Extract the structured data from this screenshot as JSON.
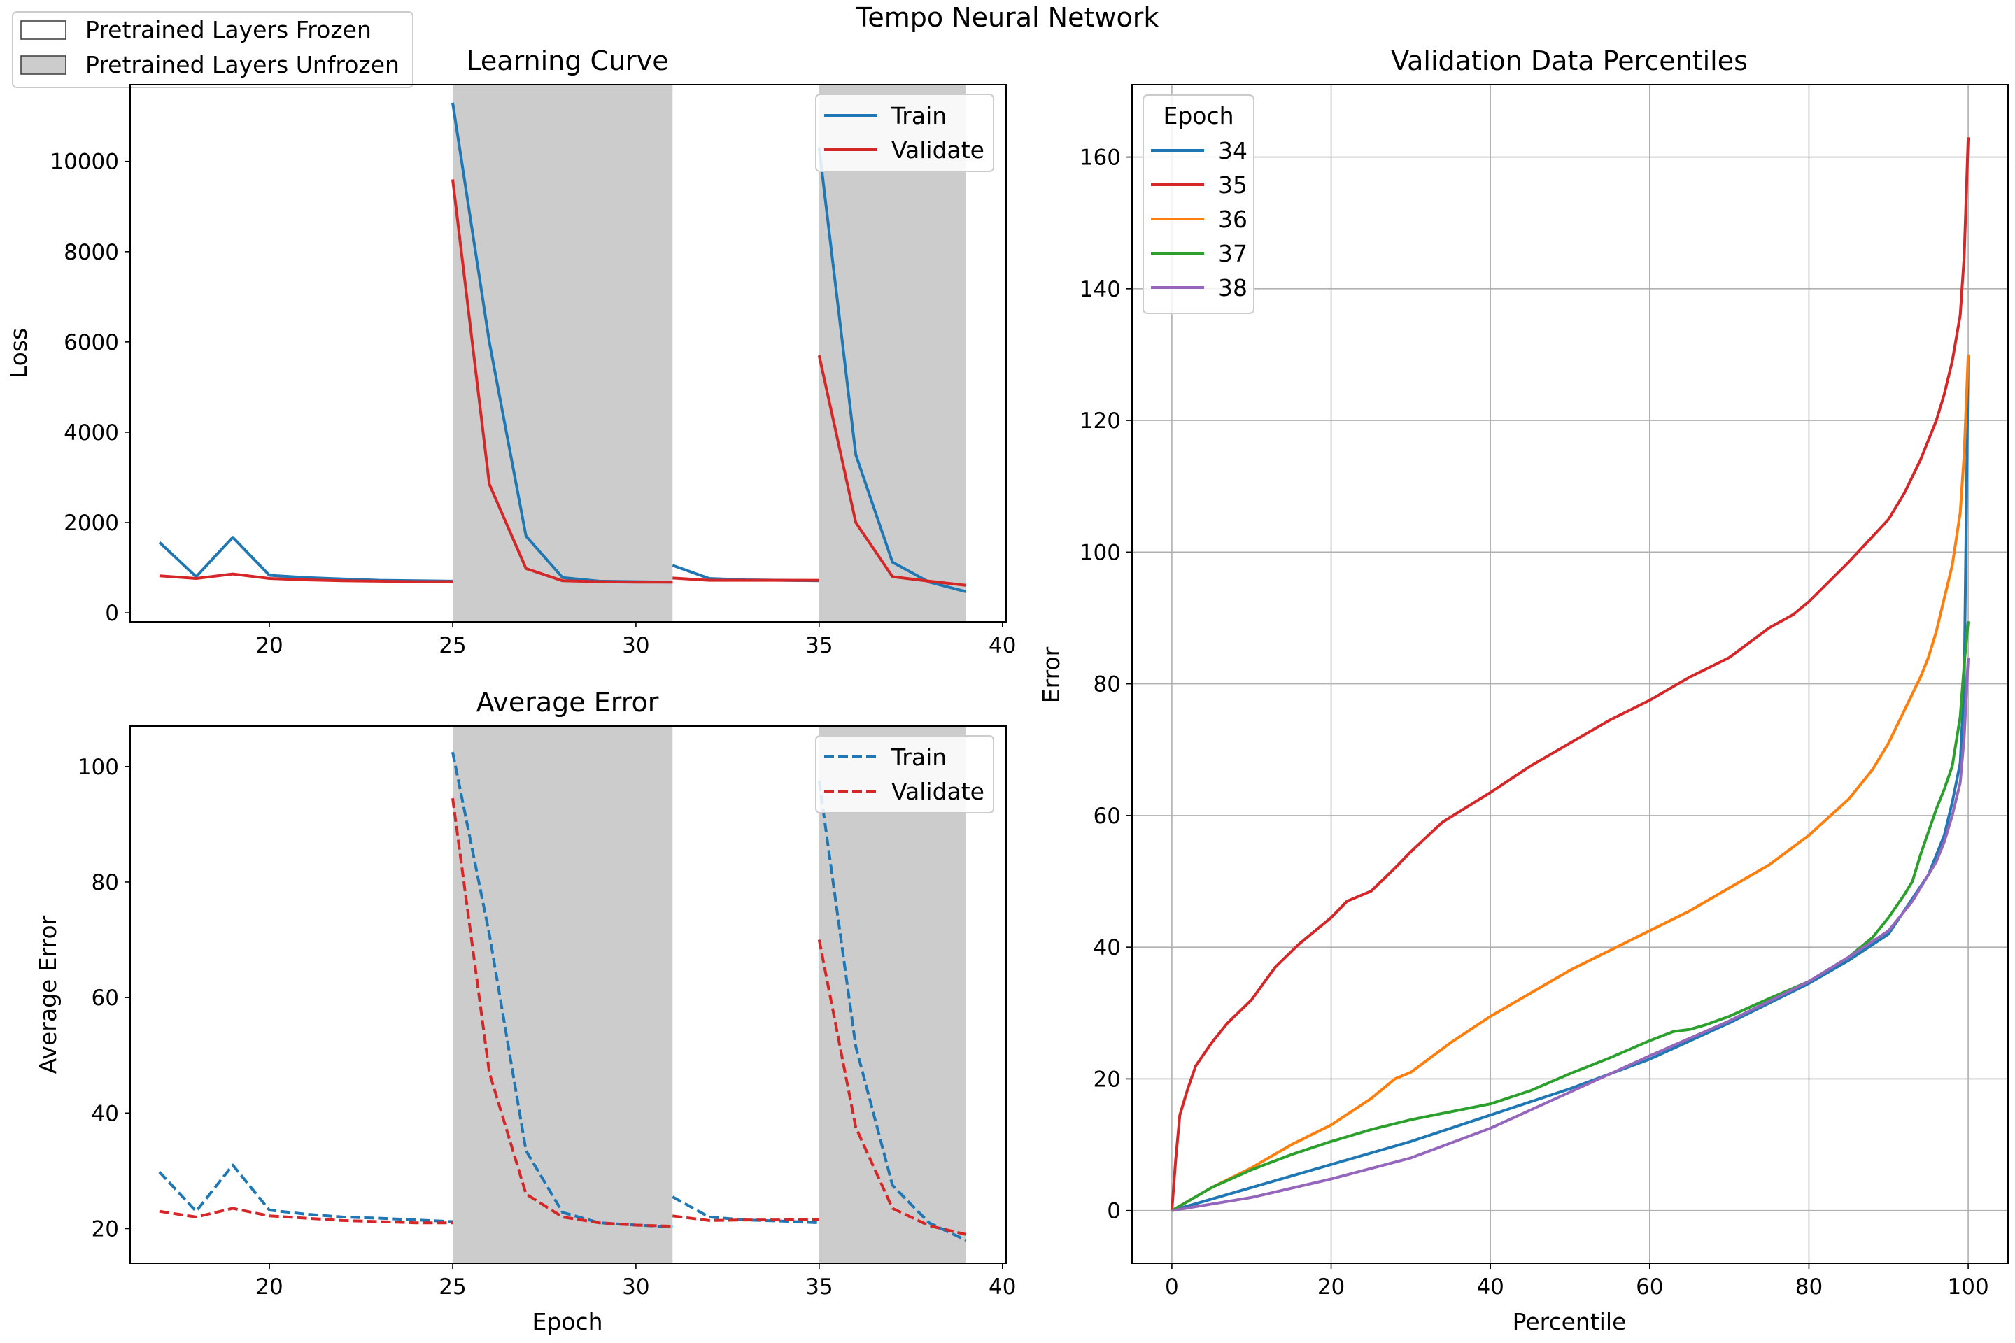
{
  "figure": {
    "suptitle": "Tempo Neural Network",
    "figure_legend": [
      {
        "label": "Pretrained Layers Frozen",
        "fill": "#ffffff"
      },
      {
        "label": "Pretrained Layers Unfrozen",
        "fill": "#cccccc"
      }
    ]
  },
  "colors": {
    "train": "#1f77b4",
    "validate": "#d62728",
    "shade": "#cccccc",
    "e34": "#1f77b4",
    "e35": "#d62728",
    "e36": "#ff7f0e",
    "e37": "#2ca02c",
    "e38": "#9467bd"
  },
  "chart_data": [
    {
      "type": "line",
      "title": "Learning Curve",
      "xlabel": "",
      "ylabel": "Loss",
      "xlim": [
        16.2,
        40.1
      ],
      "ylim": [
        -200,
        11700
      ],
      "xticks": [
        20,
        25,
        30,
        35,
        40
      ],
      "yticks": [
        0,
        2000,
        4000,
        6000,
        8000,
        10000
      ],
      "legend": "top-right",
      "shaded_regions": [
        [
          25,
          31
        ],
        [
          35,
          39
        ]
      ],
      "series": [
        {
          "name": "Train",
          "color": "#1f77b4",
          "style": "solid",
          "segments": [
            {
              "x": [
                17,
                18,
                19,
                20,
                21,
                22,
                23,
                24,
                25
              ],
              "y": [
                1560,
                800,
                1670,
                830,
                780,
                750,
                720,
                710,
                700
              ]
            },
            {
              "x": [
                25,
                26,
                27,
                28,
                29,
                30,
                31
              ],
              "y": [
                11300,
                6000,
                1700,
                780,
                700,
                690,
                680
              ]
            },
            {
              "x": [
                31,
                32,
                33,
                34,
                35
              ],
              "y": [
                1050,
                760,
                730,
                720,
                710
              ]
            },
            {
              "x": [
                35,
                36,
                37,
                38,
                39
              ],
              "y": [
                10300,
                3500,
                1120,
                680,
                470
              ]
            }
          ]
        },
        {
          "name": "Validate",
          "color": "#d62728",
          "style": "solid",
          "segments": [
            {
              "x": [
                17,
                18,
                19,
                20,
                21,
                22,
                23,
                24,
                25
              ],
              "y": [
                820,
                760,
                860,
                760,
                730,
                710,
                700,
                690,
                690
              ]
            },
            {
              "x": [
                25,
                26,
                27,
                28,
                29,
                30,
                31
              ],
              "y": [
                9600,
                2850,
                980,
                710,
                690,
                680,
                680
              ]
            },
            {
              "x": [
                31,
                32,
                33,
                34,
                35
              ],
              "y": [
                770,
                720,
                720,
                720,
                720
              ]
            },
            {
              "x": [
                35,
                36,
                37,
                38,
                39
              ],
              "y": [
                5700,
                2000,
                800,
                700,
                610
              ]
            }
          ]
        }
      ]
    },
    {
      "type": "line",
      "title": "Average Error",
      "xlabel": "Epoch",
      "ylabel": "Average Error",
      "xlim": [
        16.2,
        40.1
      ],
      "ylim": [
        14,
        107
      ],
      "xticks": [
        20,
        25,
        30,
        35,
        40
      ],
      "yticks": [
        20,
        40,
        60,
        80,
        100
      ],
      "legend": "top-right",
      "shaded_regions": [
        [
          25,
          31
        ],
        [
          35,
          39
        ]
      ],
      "series": [
        {
          "name": "Train",
          "color": "#1f77b4",
          "style": "dashed",
          "segments": [
            {
              "x": [
                17,
                18,
                19,
                20,
                21,
                22,
                23,
                24,
                25
              ],
              "y": [
                29.8,
                23.0,
                31.0,
                23.2,
                22.5,
                22.0,
                21.8,
                21.5,
                21.2
              ]
            },
            {
              "x": [
                25,
                26,
                27,
                28,
                29,
                30,
                31
              ],
              "y": [
                102.5,
                71.0,
                33.5,
                22.8,
                21.0,
                20.6,
                20.3
              ]
            },
            {
              "x": [
                31,
                32,
                33,
                34,
                35
              ],
              "y": [
                25.5,
                22.0,
                21.5,
                21.3,
                21.0
              ]
            },
            {
              "x": [
                35,
                36,
                37,
                38,
                39
              ],
              "y": [
                97.5,
                51.5,
                27.5,
                21.0,
                18.0
              ]
            }
          ]
        },
        {
          "name": "Validate",
          "color": "#d62728",
          "style": "dashed",
          "segments": [
            {
              "x": [
                17,
                18,
                19,
                20,
                21,
                22,
                23,
                24,
                25
              ],
              "y": [
                23.0,
                22.0,
                23.5,
                22.2,
                21.8,
                21.4,
                21.2,
                21.0,
                21.0
              ]
            },
            {
              "x": [
                25,
                26,
                27,
                28,
                29,
                30,
                31
              ],
              "y": [
                94.5,
                47.0,
                26.0,
                22.0,
                21.0,
                20.6,
                20.4
              ]
            },
            {
              "x": [
                31,
                32,
                33,
                34,
                35
              ],
              "y": [
                22.2,
                21.4,
                21.5,
                21.5,
                21.6
              ]
            },
            {
              "x": [
                35,
                36,
                37,
                38,
                39
              ],
              "y": [
                70.0,
                37.5,
                23.5,
                20.5,
                19.0
              ]
            }
          ]
        }
      ]
    },
    {
      "type": "line",
      "title": "Validation Data Percentiles",
      "xlabel": "Percentile",
      "ylabel": "Error",
      "xlim": [
        -5,
        105
      ],
      "ylim": [
        -8,
        171
      ],
      "xticks": [
        0,
        20,
        40,
        60,
        80,
        100
      ],
      "yticks": [
        0,
        20,
        40,
        60,
        80,
        100,
        120,
        140,
        160
      ],
      "grid": true,
      "legend": "top-left",
      "legend_title": "Epoch",
      "series": [
        {
          "name": "34",
          "color": "#1f77b4",
          "x": [
            0,
            10,
            20,
            30,
            40,
            50,
            60,
            70,
            80,
            85,
            90,
            95,
            97,
            98,
            99,
            99.5,
            100
          ],
          "y": [
            0,
            3.5,
            7,
            10.5,
            14.5,
            18.5,
            23,
            28.5,
            34.5,
            38,
            42,
            51,
            57,
            62,
            68,
            80,
            130
          ]
        },
        {
          "name": "35",
          "color": "#d62728",
          "x": [
            0,
            0.5,
            1,
            2,
            3,
            5,
            7,
            10,
            13,
            16,
            20,
            22,
            24,
            25,
            28,
            30,
            34,
            40,
            45,
            50,
            55,
            60,
            65,
            70,
            75,
            78,
            80,
            85,
            90,
            92,
            94,
            96,
            97,
            98,
            99,
            99.5,
            100
          ],
          "y": [
            0,
            8,
            14.5,
            18.5,
            22,
            25.5,
            28.5,
            32,
            37,
            40.5,
            44.5,
            47,
            48,
            48.5,
            52,
            54.5,
            59,
            63.5,
            67.5,
            71,
            74.5,
            77.5,
            81,
            84,
            88.5,
            90.5,
            92.5,
            98.5,
            105,
            109,
            114,
            120,
            124,
            129,
            136,
            145,
            163
          ]
        },
        {
          "name": "36",
          "color": "#ff7f0e",
          "x": [
            0,
            5,
            10,
            15,
            20,
            25,
            28,
            30,
            35,
            40,
            45,
            50,
            55,
            60,
            65,
            70,
            75,
            80,
            85,
            88,
            90,
            92,
            94,
            95,
            96,
            97,
            98,
            99,
            99.5,
            100
          ],
          "y": [
            0,
            3.5,
            6.5,
            10,
            13,
            17,
            20,
            21,
            25.5,
            29.5,
            33,
            36.5,
            39.5,
            42.5,
            45.5,
            49,
            52.5,
            57,
            62.5,
            67,
            71,
            76,
            81,
            84,
            88,
            93,
            98,
            106,
            115,
            130
          ]
        },
        {
          "name": "37",
          "color": "#2ca02c",
          "x": [
            0,
            5,
            10,
            15,
            20,
            25,
            30,
            35,
            40,
            45,
            50,
            55,
            60,
            63,
            65,
            67,
            70,
            75,
            80,
            85,
            88,
            90,
            92,
            93,
            94,
            95,
            96,
            97,
            98,
            99,
            99.5,
            100
          ],
          "y": [
            0,
            3.5,
            6.2,
            8.5,
            10.5,
            12.3,
            13.8,
            15,
            16.2,
            18.2,
            20.8,
            23.2,
            25.8,
            27.2,
            27.5,
            28.2,
            29.5,
            32.2,
            34.8,
            38.5,
            41.5,
            44.5,
            48,
            50,
            54,
            57.5,
            61,
            64,
            67.5,
            75,
            83,
            89.5
          ]
        },
        {
          "name": "38",
          "color": "#9467bd",
          "x": [
            0,
            10,
            20,
            30,
            40,
            50,
            60,
            70,
            80,
            85,
            90,
            93,
            95,
            96,
            97,
            98,
            99,
            99.5,
            100
          ],
          "y": [
            0,
            2,
            4.8,
            8,
            12.5,
            18,
            23.5,
            28.8,
            34.8,
            38.5,
            42.5,
            47,
            51,
            53,
            56,
            60,
            65,
            72,
            84
          ]
        }
      ]
    }
  ]
}
